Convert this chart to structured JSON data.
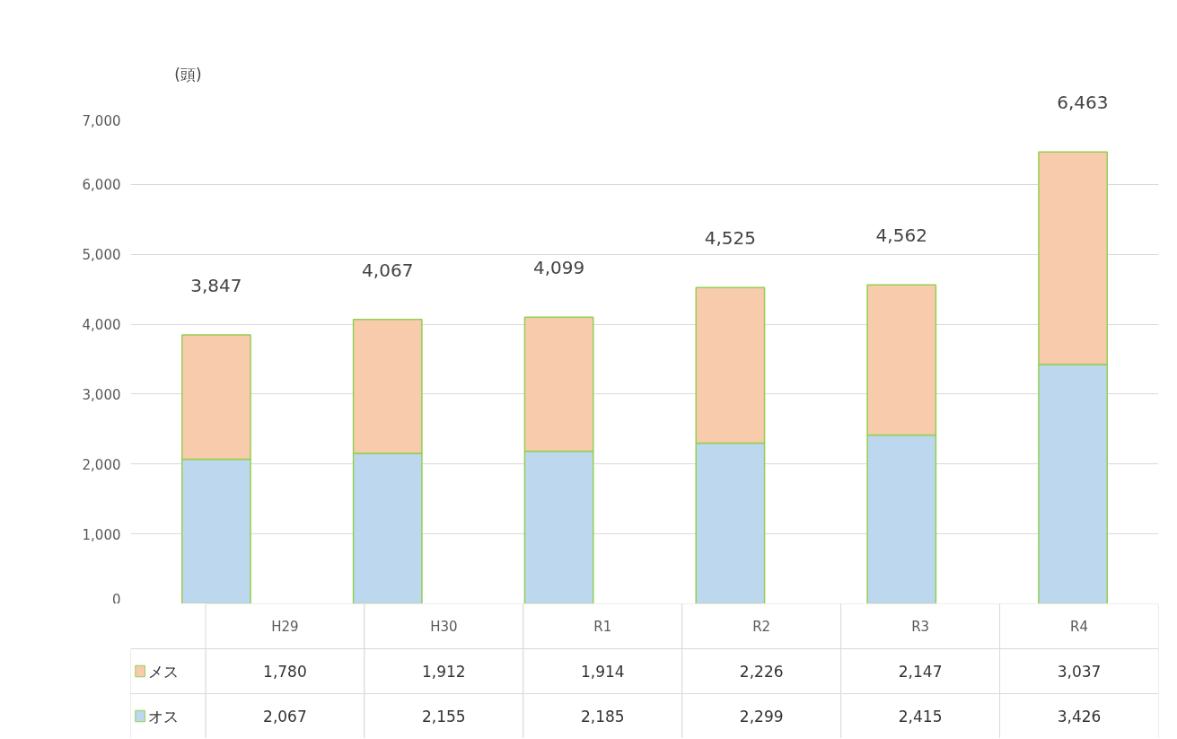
{
  "chart_data": {
    "type": "bar",
    "stacked": true,
    "ylabel": "(頭)",
    "categories": [
      "H29",
      "H30",
      "R1",
      "R2",
      "R3",
      "R4"
    ],
    "series": [
      {
        "name": "オス",
        "color": "#bdd7ee",
        "values": [
          2067,
          2155,
          2185,
          2299,
          2415,
          3426
        ],
        "value_labels": [
          "2,067",
          "2,155",
          "2,185",
          "2,299",
          "2,415",
          "3,426"
        ]
      },
      {
        "name": "メス",
        "color": "#f8cbad",
        "values": [
          1780,
          1912,
          1914,
          2226,
          2147,
          3037
        ],
        "value_labels": [
          "1,780",
          "1,912",
          "1,914",
          "2,226",
          "2,147",
          "3,037"
        ]
      }
    ],
    "ylim": [
      0,
      7000
    ],
    "yticks": [
      0,
      {
        "value": 1000,
        "label": "1,000"
      },
      {
        "value": 2000,
        "label": "2,000"
      },
      {
        "value": 3000,
        "label": "3,000"
      },
      {
        "value": 4000,
        "label": "4,000"
      },
      {
        "value": 5000,
        "label": "5,000"
      },
      {
        "value": 6000,
        "label": "6,000"
      },
      {
        "value": 7000,
        "label": "7,000"
      }
    ],
    "grid": "y",
    "legend": "bottom",
    "totals": [
      "3,847",
      "4,067",
      "4,099",
      "4,525",
      "4,562",
      "6,463"
    ]
  }
}
